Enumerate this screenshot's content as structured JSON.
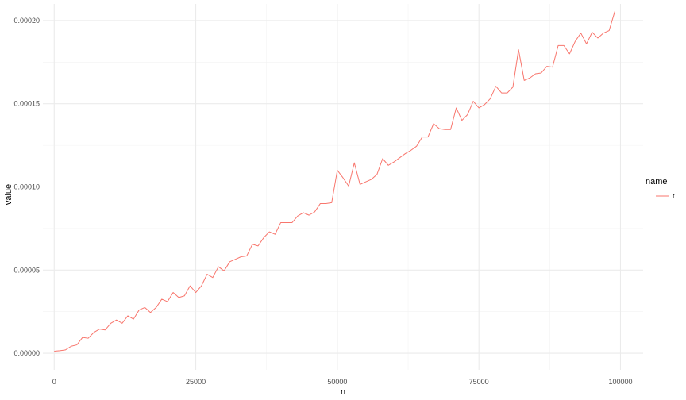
{
  "chart_data": {
    "type": "line",
    "xlabel": "n",
    "ylabel": "value",
    "xlim": [
      -2000,
      104000
    ],
    "ylim": [
      -1e-05,
      0.00021
    ],
    "x_ticks": [
      0,
      25000,
      50000,
      75000,
      100000
    ],
    "x_tick_labels": [
      "0",
      "25000",
      "50000",
      "75000",
      "100000"
    ],
    "y_ticks": [
      0.0,
      5e-05,
      0.0001,
      0.00015,
      0.0002
    ],
    "y_tick_labels": [
      "0.00000",
      "0.00005",
      "0.00010",
      "0.00015",
      "0.00020"
    ],
    "grid": true,
    "legend": {
      "title": "name",
      "position": "right"
    },
    "series": [
      {
        "name": "t",
        "color": "#F8766D",
        "x": [
          0,
          1000,
          2000,
          3000,
          4000,
          5000,
          6000,
          7000,
          8000,
          9000,
          10000,
          11000,
          12000,
          13000,
          14000,
          15000,
          16000,
          17000,
          18000,
          19000,
          20000,
          21000,
          22000,
          23000,
          24000,
          25000,
          26000,
          27000,
          28000,
          29000,
          30000,
          31000,
          32000,
          33000,
          34000,
          35000,
          36000,
          37000,
          38000,
          39000,
          40000,
          41000,
          42000,
          43000,
          44000,
          45000,
          46000,
          47000,
          48000,
          49000,
          50000,
          51000,
          52000,
          53000,
          54000,
          55000,
          56000,
          57000,
          58000,
          59000,
          60000,
          61000,
          62000,
          63000,
          64000,
          65000,
          66000,
          67000,
          68000,
          69000,
          70000,
          71000,
          72000,
          73000,
          74000,
          75000,
          76000,
          77000,
          78000,
          79000,
          80000,
          81000,
          82000,
          83000,
          84000,
          85000,
          86000,
          87000,
          88000,
          89000,
          90000,
          91000,
          92000,
          93000,
          94000,
          95000,
          96000,
          97000,
          98000,
          99000
        ],
        "values": [
          1.2e-06,
          1.5e-06,
          2e-06,
          4.2e-06,
          5e-06,
          9.5e-06,
          9e-06,
          1.25e-05,
          1.45e-05,
          1.4e-05,
          1.8e-05,
          2e-05,
          1.8e-05,
          2.25e-05,
          2.05e-05,
          2.6e-05,
          2.75e-05,
          2.45e-05,
          2.75e-05,
          3.25e-05,
          3.1e-05,
          3.65e-05,
          3.35e-05,
          3.45e-05,
          4.05e-05,
          3.65e-05,
          4.05e-05,
          4.75e-05,
          4.55e-05,
          5.2e-05,
          4.95e-05,
          5.5e-05,
          5.65e-05,
          5.8e-05,
          5.85e-05,
          6.55e-05,
          6.45e-05,
          6.95e-05,
          7.3e-05,
          7.15e-05,
          7.85e-05,
          7.85e-05,
          7.85e-05,
          8.25e-05,
          8.45e-05,
          8.3e-05,
          8.5e-05,
          9e-05,
          9e-05,
          9.05e-05,
          0.00011,
          0.0001055,
          0.0001005,
          0.0001145,
          0.0001015,
          0.000103,
          0.0001045,
          0.0001075,
          0.000117,
          0.000113,
          0.000115,
          0.0001175,
          0.00012,
          0.000122,
          0.0001245,
          0.00013,
          0.00013,
          0.000138,
          0.000135,
          0.0001345,
          0.0001345,
          0.0001475,
          0.00014,
          0.0001435,
          0.0001515,
          0.0001475,
          0.0001495,
          0.000153,
          0.0001605,
          0.0001565,
          0.0001565,
          0.00016,
          0.0001825,
          0.000164,
          0.0001655,
          0.000168,
          0.0001685,
          0.0001725,
          0.000172,
          0.000185,
          0.000185,
          0.00018,
          0.0001875,
          0.0001925,
          0.000186,
          0.000193,
          0.0001895,
          0.0001925,
          0.000194,
          0.0002055
        ]
      }
    ]
  }
}
